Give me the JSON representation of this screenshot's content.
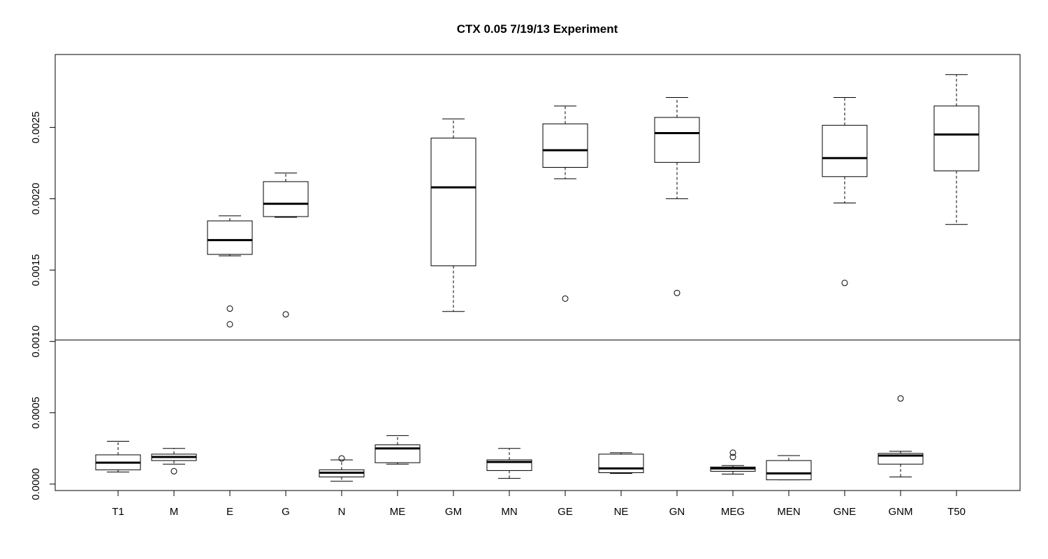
{
  "chart_data": {
    "type": "boxplot",
    "title": "CTX 0.05 7/19/13 Experiment",
    "xlabel": "",
    "ylabel": "",
    "ylim": [
      -4.5e-05,
      0.003011
    ],
    "yticks": [
      0.0,
      0.0005,
      0.001,
      0.0015,
      0.002,
      0.0025
    ],
    "ytick_labels": [
      "0.0000",
      "0.0005",
      "0.0010",
      "0.0015",
      "0.0020",
      "0.0025"
    ],
    "hline": 0.00101,
    "grid": false,
    "legend": "none",
    "categories": [
      "T1",
      "M",
      "E",
      "G",
      "N",
      "ME",
      "GM",
      "MN",
      "GE",
      "NE",
      "GN",
      "MEG",
      "MEN",
      "GNE",
      "GNM",
      "T50"
    ],
    "boxes": [
      {
        "category": "T1",
        "whisker_low": 8.5e-05,
        "q1": 0.0001,
        "median": 0.00015,
        "q3": 0.000205,
        "whisker_high": 0.0003,
        "outliers": []
      },
      {
        "category": "M",
        "whisker_low": 0.00014,
        "q1": 0.000165,
        "median": 0.00019,
        "q3": 0.00021,
        "whisker_high": 0.00025,
        "outliers": [
          9e-05
        ]
      },
      {
        "category": "E",
        "whisker_low": 0.0016,
        "q1": 0.00161,
        "median": 0.00171,
        "q3": 0.001845,
        "whisker_high": 0.00188,
        "outliers": [
          0.00123,
          0.00112
        ]
      },
      {
        "category": "G",
        "whisker_low": 0.00187,
        "q1": 0.001875,
        "median": 0.001965,
        "q3": 0.00212,
        "whisker_high": 0.00218,
        "outliers": [
          0.00119
        ]
      },
      {
        "category": "N",
        "whisker_low": 2e-05,
        "q1": 5e-05,
        "median": 8e-05,
        "q3": 0.0001,
        "whisker_high": 0.00017,
        "outliers": [
          0.00018
        ]
      },
      {
        "category": "ME",
        "whisker_low": 0.00014,
        "q1": 0.00015,
        "median": 0.00025,
        "q3": 0.000275,
        "whisker_high": 0.00034,
        "outliers": []
      },
      {
        "category": "GM",
        "whisker_low": 0.00121,
        "q1": 0.00153,
        "median": 0.00208,
        "q3": 0.002425,
        "whisker_high": 0.00256,
        "outliers": []
      },
      {
        "category": "MN",
        "whisker_low": 4e-05,
        "q1": 9.5e-05,
        "median": 0.000155,
        "q3": 0.00017,
        "whisker_high": 0.00025,
        "outliers": []
      },
      {
        "category": "GE",
        "whisker_low": 0.00214,
        "q1": 0.00222,
        "median": 0.00234,
        "q3": 0.002525,
        "whisker_high": 0.00265,
        "outliers": [
          0.0013
        ]
      },
      {
        "category": "NE",
        "whisker_low": 7.5e-05,
        "q1": 8e-05,
        "median": 0.00011,
        "q3": 0.00021,
        "whisker_high": 0.00022,
        "outliers": []
      },
      {
        "category": "GN",
        "whisker_low": 0.002,
        "q1": 0.002255,
        "median": 0.00246,
        "q3": 0.00257,
        "whisker_high": 0.00271,
        "outliers": [
          0.00134
        ]
      },
      {
        "category": "MEG",
        "whisker_low": 7e-05,
        "q1": 9e-05,
        "median": 0.00011,
        "q3": 0.00012,
        "whisker_high": 0.00013,
        "outliers": [
          0.00022,
          0.00019
        ]
      },
      {
        "category": "MEN",
        "whisker_low": 3e-05,
        "q1": 3e-05,
        "median": 7.5e-05,
        "q3": 0.000165,
        "whisker_high": 0.0002,
        "outliers": []
      },
      {
        "category": "GNE",
        "whisker_low": 0.00197,
        "q1": 0.002155,
        "median": 0.002285,
        "q3": 0.002515,
        "whisker_high": 0.00271,
        "outliers": [
          0.00141
        ]
      },
      {
        "category": "GNM",
        "whisker_low": 5e-05,
        "q1": 0.00014,
        "median": 0.0002,
        "q3": 0.000215,
        "whisker_high": 0.00023,
        "outliers": [
          0.0006
        ]
      },
      {
        "category": "T50",
        "whisker_low": 0.00182,
        "q1": 0.002195,
        "median": 0.00245,
        "q3": 0.00265,
        "whisker_high": 0.00287,
        "outliers": []
      }
    ]
  }
}
